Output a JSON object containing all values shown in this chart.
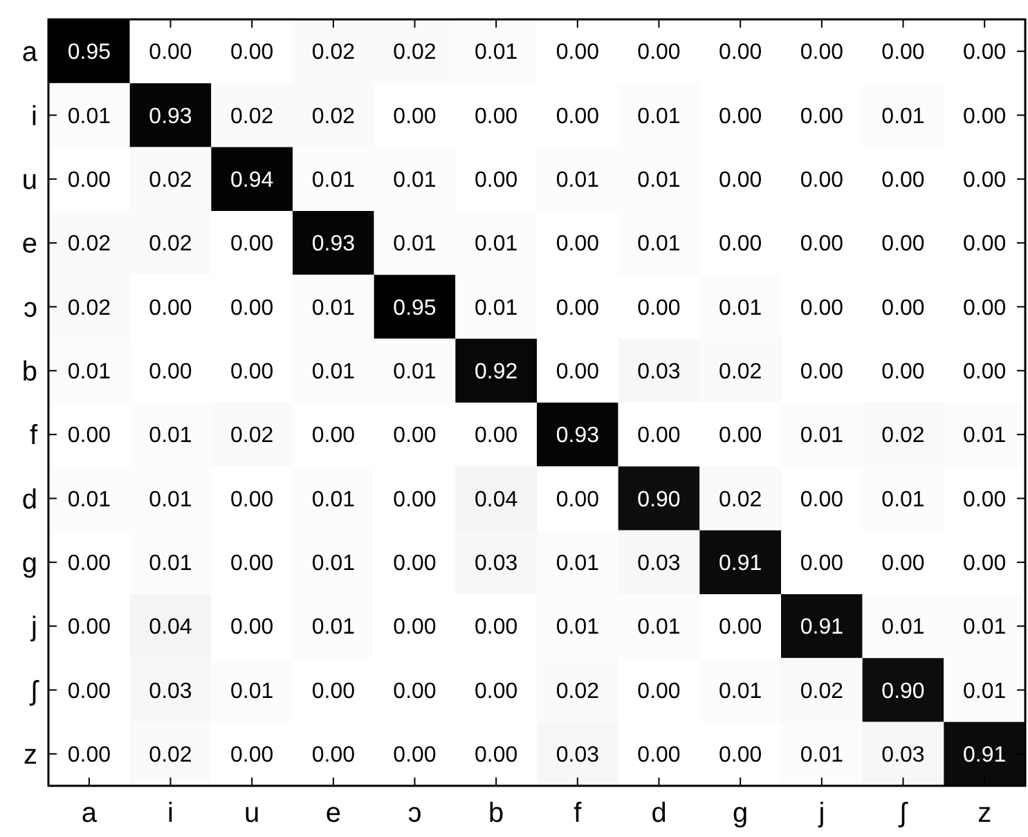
{
  "chart_data": {
    "type": "heatmap",
    "categories": [
      "a",
      "i",
      "u",
      "e",
      "ɔ",
      "b",
      "f",
      "d",
      "g",
      "j",
      "ʃ",
      "z"
    ],
    "y_categories": [
      "a",
      "i",
      "u",
      "e",
      "ɔ",
      "b",
      "f",
      "d",
      "g",
      "j",
      "ʃ",
      "z"
    ],
    "cells": [
      [
        0.95,
        0.0,
        0.0,
        0.02,
        0.02,
        0.01,
        0.0,
        0.0,
        0.0,
        0.0,
        0.0,
        0.0
      ],
      [
        0.01,
        0.93,
        0.02,
        0.02,
        0.0,
        0.0,
        0.0,
        0.01,
        0.0,
        0.0,
        0.01,
        0.0
      ],
      [
        0.0,
        0.02,
        0.94,
        0.01,
        0.01,
        0.0,
        0.01,
        0.01,
        0.0,
        0.0,
        0.0,
        0.0
      ],
      [
        0.02,
        0.02,
        0.0,
        0.93,
        0.01,
        0.01,
        0.0,
        0.01,
        0.0,
        0.0,
        0.0,
        0.0
      ],
      [
        0.02,
        0.0,
        0.0,
        0.01,
        0.95,
        0.01,
        0.0,
        0.0,
        0.01,
        0.0,
        0.0,
        0.0
      ],
      [
        0.01,
        0.0,
        0.0,
        0.01,
        0.01,
        0.92,
        0.0,
        0.03,
        0.02,
        0.0,
        0.0,
        0.0
      ],
      [
        0.0,
        0.01,
        0.02,
        0.0,
        0.0,
        0.0,
        0.93,
        0.0,
        0.0,
        0.01,
        0.02,
        0.01
      ],
      [
        0.01,
        0.01,
        0.0,
        0.01,
        0.0,
        0.04,
        0.0,
        0.9,
        0.02,
        0.0,
        0.01,
        0.0
      ],
      [
        0.0,
        0.01,
        0.0,
        0.01,
        0.0,
        0.03,
        0.01,
        0.03,
        0.91,
        0.0,
        0.0,
        0.0
      ],
      [
        0.0,
        0.04,
        0.0,
        0.01,
        0.0,
        0.0,
        0.01,
        0.01,
        0.0,
        0.91,
        0.01,
        0.01
      ],
      [
        0.0,
        0.03,
        0.01,
        0.0,
        0.0,
        0.0,
        0.02,
        0.0,
        0.01,
        0.02,
        0.9,
        0.01
      ],
      [
        0.0,
        0.02,
        0.0,
        0.0,
        0.0,
        0.0,
        0.03,
        0.0,
        0.0,
        0.01,
        0.03,
        0.91
      ]
    ],
    "cell_labels": [
      [
        "0.95",
        "0.00",
        "0.00",
        "0.02",
        "0.02",
        "0.01",
        "0.00",
        "0.00",
        "0.00",
        "0.00",
        "0.00",
        "0.00"
      ],
      [
        "0.01",
        "0.93",
        "0.02",
        "0.02",
        "0.00",
        "0.00",
        "0.00",
        "0.01",
        "0.00",
        "0.00",
        "0.01",
        "0.00"
      ],
      [
        "0.00",
        "0.02",
        "0.94",
        "0.01",
        "0.01",
        "0.00",
        "0.01",
        "0.01",
        "0.00",
        "0.00",
        "0.00",
        "0.00"
      ],
      [
        "0.02",
        "0.02",
        "0.00",
        "0.93",
        "0.01",
        "0.01",
        "0.00",
        "0.01",
        "0.00",
        "0.00",
        "0.00",
        "0.00"
      ],
      [
        "0.02",
        "0.00",
        "0.00",
        "0.01",
        "0.95",
        "0.01",
        "0.00",
        "0.00",
        "0.01",
        "0.00",
        "0.00",
        "0.00"
      ],
      [
        "0.01",
        "0.00",
        "0.00",
        "0.01",
        "0.01",
        "0.92",
        "0.00",
        "0.03",
        "0.02",
        "0.00",
        "0.00",
        "0.00"
      ],
      [
        "0.00",
        "0.01",
        "0.02",
        "0.00",
        "0.00",
        "0.00",
        "0.93",
        "0.00",
        "0.00",
        "0.01",
        "0.02",
        "0.01"
      ],
      [
        "0.01",
        "0.01",
        "0.00",
        "0.01",
        "0.00",
        "0.04",
        "0.00",
        "0.90",
        "0.02",
        "0.00",
        "0.01",
        "0.00"
      ],
      [
        "0.00",
        "0.01",
        "0.00",
        "0.01",
        "0.00",
        "0.03",
        "0.01",
        "0.03",
        "0.91",
        "0.00",
        "0.00",
        "0.00"
      ],
      [
        "0.00",
        "0.04",
        "0.00",
        "0.01",
        "0.00",
        "0.00",
        "0.01",
        "0.01",
        "0.00",
        "0.91",
        "0.01",
        "0.01"
      ],
      [
        "0.00",
        "0.03",
        "0.01",
        "0.00",
        "0.00",
        "0.00",
        "0.02",
        "0.00",
        "0.01",
        "0.02",
        "0.90",
        "0.01"
      ],
      [
        "0.00",
        "0.02",
        "0.00",
        "0.00",
        "0.00",
        "0.00",
        "0.03",
        "0.00",
        "0.00",
        "0.01",
        "0.03",
        "0.91"
      ]
    ]
  }
}
